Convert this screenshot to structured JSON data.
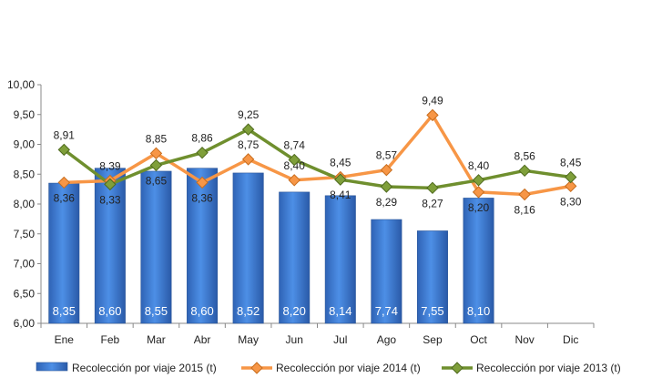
{
  "chart_data": {
    "type": "bar",
    "categories": [
      "Ene",
      "Feb",
      "Mar",
      "Abr",
      "May",
      "Jun",
      "Jul",
      "Ago",
      "Sep",
      "Oct",
      "Nov",
      "Dic"
    ],
    "ylim": [
      6.0,
      10.0
    ],
    "yticks": [
      "6,00",
      "6,50",
      "7,00",
      "7,50",
      "8,00",
      "8,50",
      "9,00",
      "9,50",
      "10,00"
    ],
    "grid": false,
    "legend_position": "bottom",
    "series": [
      {
        "name": "Recolección por viaje 2015 (t)",
        "kind": "bar",
        "color": "#3f7fd6",
        "values": [
          8.35,
          8.6,
          8.55,
          8.6,
          8.52,
          8.2,
          8.14,
          7.74,
          7.55,
          8.1,
          null,
          null
        ],
        "labels": [
          "8,35",
          "8,60",
          "8,55",
          "8,60",
          "8,52",
          "8,20",
          "8,14",
          "7,74",
          "7,55",
          "8,10",
          null,
          null
        ]
      },
      {
        "name": "Recolección por viaje 2014 (t)",
        "kind": "line",
        "color": "#f79646",
        "values": [
          8.36,
          8.39,
          8.85,
          8.36,
          8.75,
          8.4,
          8.45,
          8.57,
          9.49,
          8.2,
          8.16,
          8.3
        ],
        "labels": [
          "8,36",
          "8,39",
          "8,85",
          "8,36",
          "8,75",
          "8,40",
          "8,45",
          "8,57",
          "9,49",
          "8,20",
          "8,16",
          "8,30"
        ]
      },
      {
        "name": "Recolección por viaje 2013 (t)",
        "kind": "line",
        "color": "#6f8f2e",
        "values": [
          8.91,
          8.33,
          8.65,
          8.86,
          9.25,
          8.74,
          8.41,
          8.29,
          8.27,
          8.4,
          8.56,
          8.45
        ],
        "labels": [
          "8,91",
          "8,33",
          "8,65",
          "8,86",
          "9,25",
          "8,74",
          "8,41",
          "8,29",
          "8,27",
          "8,40",
          "8,56",
          "8,45"
        ]
      }
    ]
  }
}
